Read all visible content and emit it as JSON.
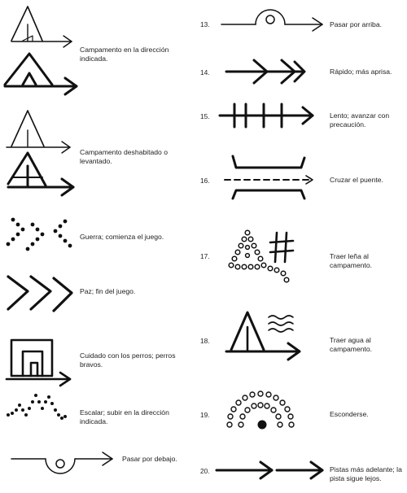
{
  "left": [
    {
      "id": "campamento-direccion",
      "label": "Campamento en la dirección\nindicada."
    },
    {
      "id": "campamento-deshabitado",
      "label": "Campamento deshabitado o\nlevantado."
    },
    {
      "id": "guerra",
      "label": "Guerra; comienza el juego."
    },
    {
      "id": "paz",
      "label": "Paz; fin del juego."
    },
    {
      "id": "cuidado-perros",
      "label": "Cuidado con los perros; perros\nbravos."
    },
    {
      "id": "escalar",
      "label": "Escalar; subir en la dirección\nindicada."
    },
    {
      "id": "pasar-debajo",
      "label": "Pasar por debajo."
    }
  ],
  "right": [
    {
      "num": "13.",
      "label": "Pasar por arriba."
    },
    {
      "num": "14.",
      "label": "Rápido; más aprisa."
    },
    {
      "num": "15.",
      "label": "Lento; avanzar con\nprecaución."
    },
    {
      "num": "16.",
      "label": "Cruzar el puente."
    },
    {
      "num": "17.",
      "label": "Traer leña al\ncampamento."
    },
    {
      "num": "18.",
      "label": "Traer agua al\ncampamento."
    },
    {
      "num": "19.",
      "label": "Esconderse."
    },
    {
      "num": "20.",
      "label": "Pistas más adelante; la\npista sigue lejos."
    }
  ]
}
